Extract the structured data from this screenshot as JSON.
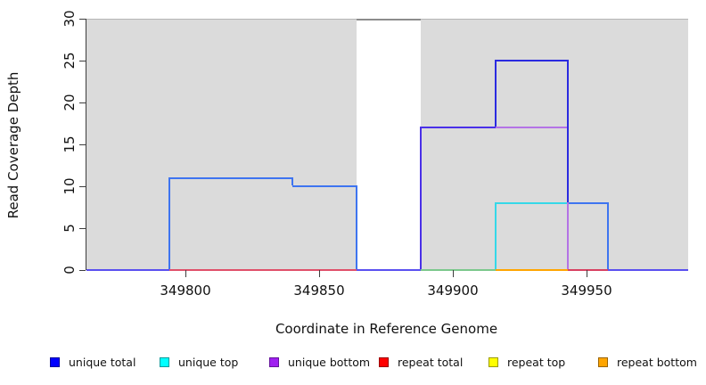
{
  "figure": {
    "xlabel": "Coordinate in Reference Genome",
    "ylabel": "Read Coverage Depth"
  },
  "chart_data": {
    "type": "line",
    "subtype": "step-coverage",
    "title": "",
    "xlabel": "Coordinate in Reference Genome",
    "ylabel": "Read Coverage Depth",
    "xlim": [
      349763,
      349988
    ],
    "ylim": [
      0,
      30
    ],
    "xticks": [
      349800,
      349850,
      349900,
      349950
    ],
    "yticks": [
      0,
      5,
      10,
      15,
      20,
      25,
      30
    ],
    "grid": "off",
    "legend_position": "bottom",
    "background_blocks": {
      "color": "#DBDBDB",
      "regions": [
        [
          349763,
          349864
        ],
        [
          349888,
          349988
        ]
      ]
    },
    "clipped_region": {
      "x": [
        349864,
        349888
      ],
      "drawn_at_y": 30,
      "color": "#8C8C8C",
      "note": "coverage exceeds y-axis max in the white gap; flat gray line at 30"
    },
    "series": [
      {
        "name": "unique total",
        "color": "#0000FF",
        "steps": [
          [
            349763,
            0
          ],
          [
            349794,
            11
          ],
          [
            349840,
            10
          ],
          [
            349864,
            0
          ],
          [
            349888,
            17
          ],
          [
            349916,
            25
          ],
          [
            349943,
            8
          ],
          [
            349958,
            0
          ],
          [
            349988,
            0
          ]
        ]
      },
      {
        "name": "unique top",
        "color": "#00FFFF",
        "steps": [
          [
            349763,
            0
          ],
          [
            349916,
            8
          ],
          [
            349958,
            0
          ],
          [
            349988,
            0
          ]
        ]
      },
      {
        "name": "unique bottom",
        "color": "#A020F0",
        "steps": [
          [
            349763,
            0
          ],
          [
            349888,
            17
          ],
          [
            349943,
            0
          ],
          [
            349988,
            0
          ]
        ]
      },
      {
        "name": "repeat total",
        "color": "#FF0000",
        "steps": [
          [
            349763,
            0
          ],
          [
            349988,
            0
          ]
        ]
      },
      {
        "name": "repeat top",
        "color": "#FFFF00",
        "steps": [
          [
            349763,
            0
          ],
          [
            349988,
            0
          ]
        ]
      },
      {
        "name": "repeat bottom",
        "color": "#FFA500",
        "steps": [
          [
            349763,
            0
          ],
          [
            349988,
            0
          ]
        ]
      }
    ],
    "render_segments": [
      {
        "x1": 349794,
        "x2": 349840,
        "y1": 11,
        "y2": 11,
        "color": "#3E74F0"
      },
      {
        "x1": 349840,
        "x2": 349864,
        "y1": 10,
        "y2": 10,
        "color": "#3E74F0"
      },
      {
        "x1": 349864,
        "x2": 349888,
        "y1": 30,
        "y2": 30,
        "color": "#8C8C8C"
      },
      {
        "x1": 349888,
        "x2": 349916,
        "y1": 17,
        "y2": 17,
        "color": "#4A30E8"
      },
      {
        "x1": 349916,
        "x2": 349943,
        "y1": 25,
        "y2": 25,
        "color": "#2B2BE0"
      },
      {
        "x1": 349916,
        "x2": 349943,
        "y1": 17,
        "y2": 17,
        "color": "#B473E6"
      },
      {
        "x1": 349916,
        "x2": 349943,
        "y1": 8,
        "y2": 8,
        "color": "#35D8E8"
      },
      {
        "x1": 349943,
        "x2": 349958,
        "y1": 8,
        "y2": 8,
        "color": "#3E74F0"
      },
      {
        "x1": 349763,
        "x2": 349794,
        "y1": 0,
        "y2": 0,
        "color": "#5A50F0"
      },
      {
        "x1": 349794,
        "x2": 349864,
        "y1": 0,
        "y2": 0,
        "color": "#E0506A"
      },
      {
        "x1": 349864,
        "x2": 349888,
        "y1": 0,
        "y2": 0,
        "color": "#5A50F0"
      },
      {
        "x1": 349888,
        "x2": 349916,
        "y1": 0,
        "y2": 0,
        "color": "#7CC88C"
      },
      {
        "x1": 349916,
        "x2": 349943,
        "y1": 0,
        "y2": 0,
        "color": "#FFA500"
      },
      {
        "x1": 349943,
        "x2": 349958,
        "y1": 0,
        "y2": 0,
        "color": "#D84060"
      },
      {
        "x1": 349958,
        "x2": 349988,
        "y1": 0,
        "y2": 0,
        "color": "#5A50F0"
      },
      {
        "x1": 349794,
        "x2": 349794,
        "y1": 0,
        "y2": 11,
        "color": "#3E74F0"
      },
      {
        "x1": 349840,
        "x2": 349840,
        "y1": 10,
        "y2": 11,
        "color": "#3E74F0"
      },
      {
        "x1": 349864,
        "x2": 349864,
        "y1": 0,
        "y2": 10,
        "color": "#3E74F0"
      },
      {
        "x1": 349888,
        "x2": 349888,
        "y1": 0,
        "y2": 17,
        "color": "#4A30E8"
      },
      {
        "x1": 349916,
        "x2": 349916,
        "y1": 0,
        "y2": 8,
        "color": "#35D8E8"
      },
      {
        "x1": 349916,
        "x2": 349916,
        "y1": 17,
        "y2": 25,
        "color": "#2B2BE0"
      },
      {
        "x1": 349943,
        "x2": 349943,
        "y1": 0,
        "y2": 17,
        "color": "#B473E6"
      },
      {
        "x1": 349943,
        "x2": 349943,
        "y1": 8,
        "y2": 25,
        "color": "#2B2BE0"
      },
      {
        "x1": 349958,
        "x2": 349958,
        "y1": 0,
        "y2": 8,
        "color": "#3E74F0"
      }
    ]
  },
  "legend": {
    "items": [
      {
        "label": "unique total",
        "color": "#0000FF",
        "border": "#00009B"
      },
      {
        "label": "unique top",
        "color": "#00FFFF",
        "border": "#009B9B"
      },
      {
        "label": "unique bottom",
        "color": "#A020F0",
        "border": "#64149B"
      },
      {
        "label": "repeat total",
        "color": "#FF0000",
        "border": "#9B0000"
      },
      {
        "label": "repeat top",
        "color": "#FFFF00",
        "border": "#9B9B00"
      },
      {
        "label": "repeat bottom",
        "color": "#FFA500",
        "border": "#9B6400"
      }
    ]
  }
}
